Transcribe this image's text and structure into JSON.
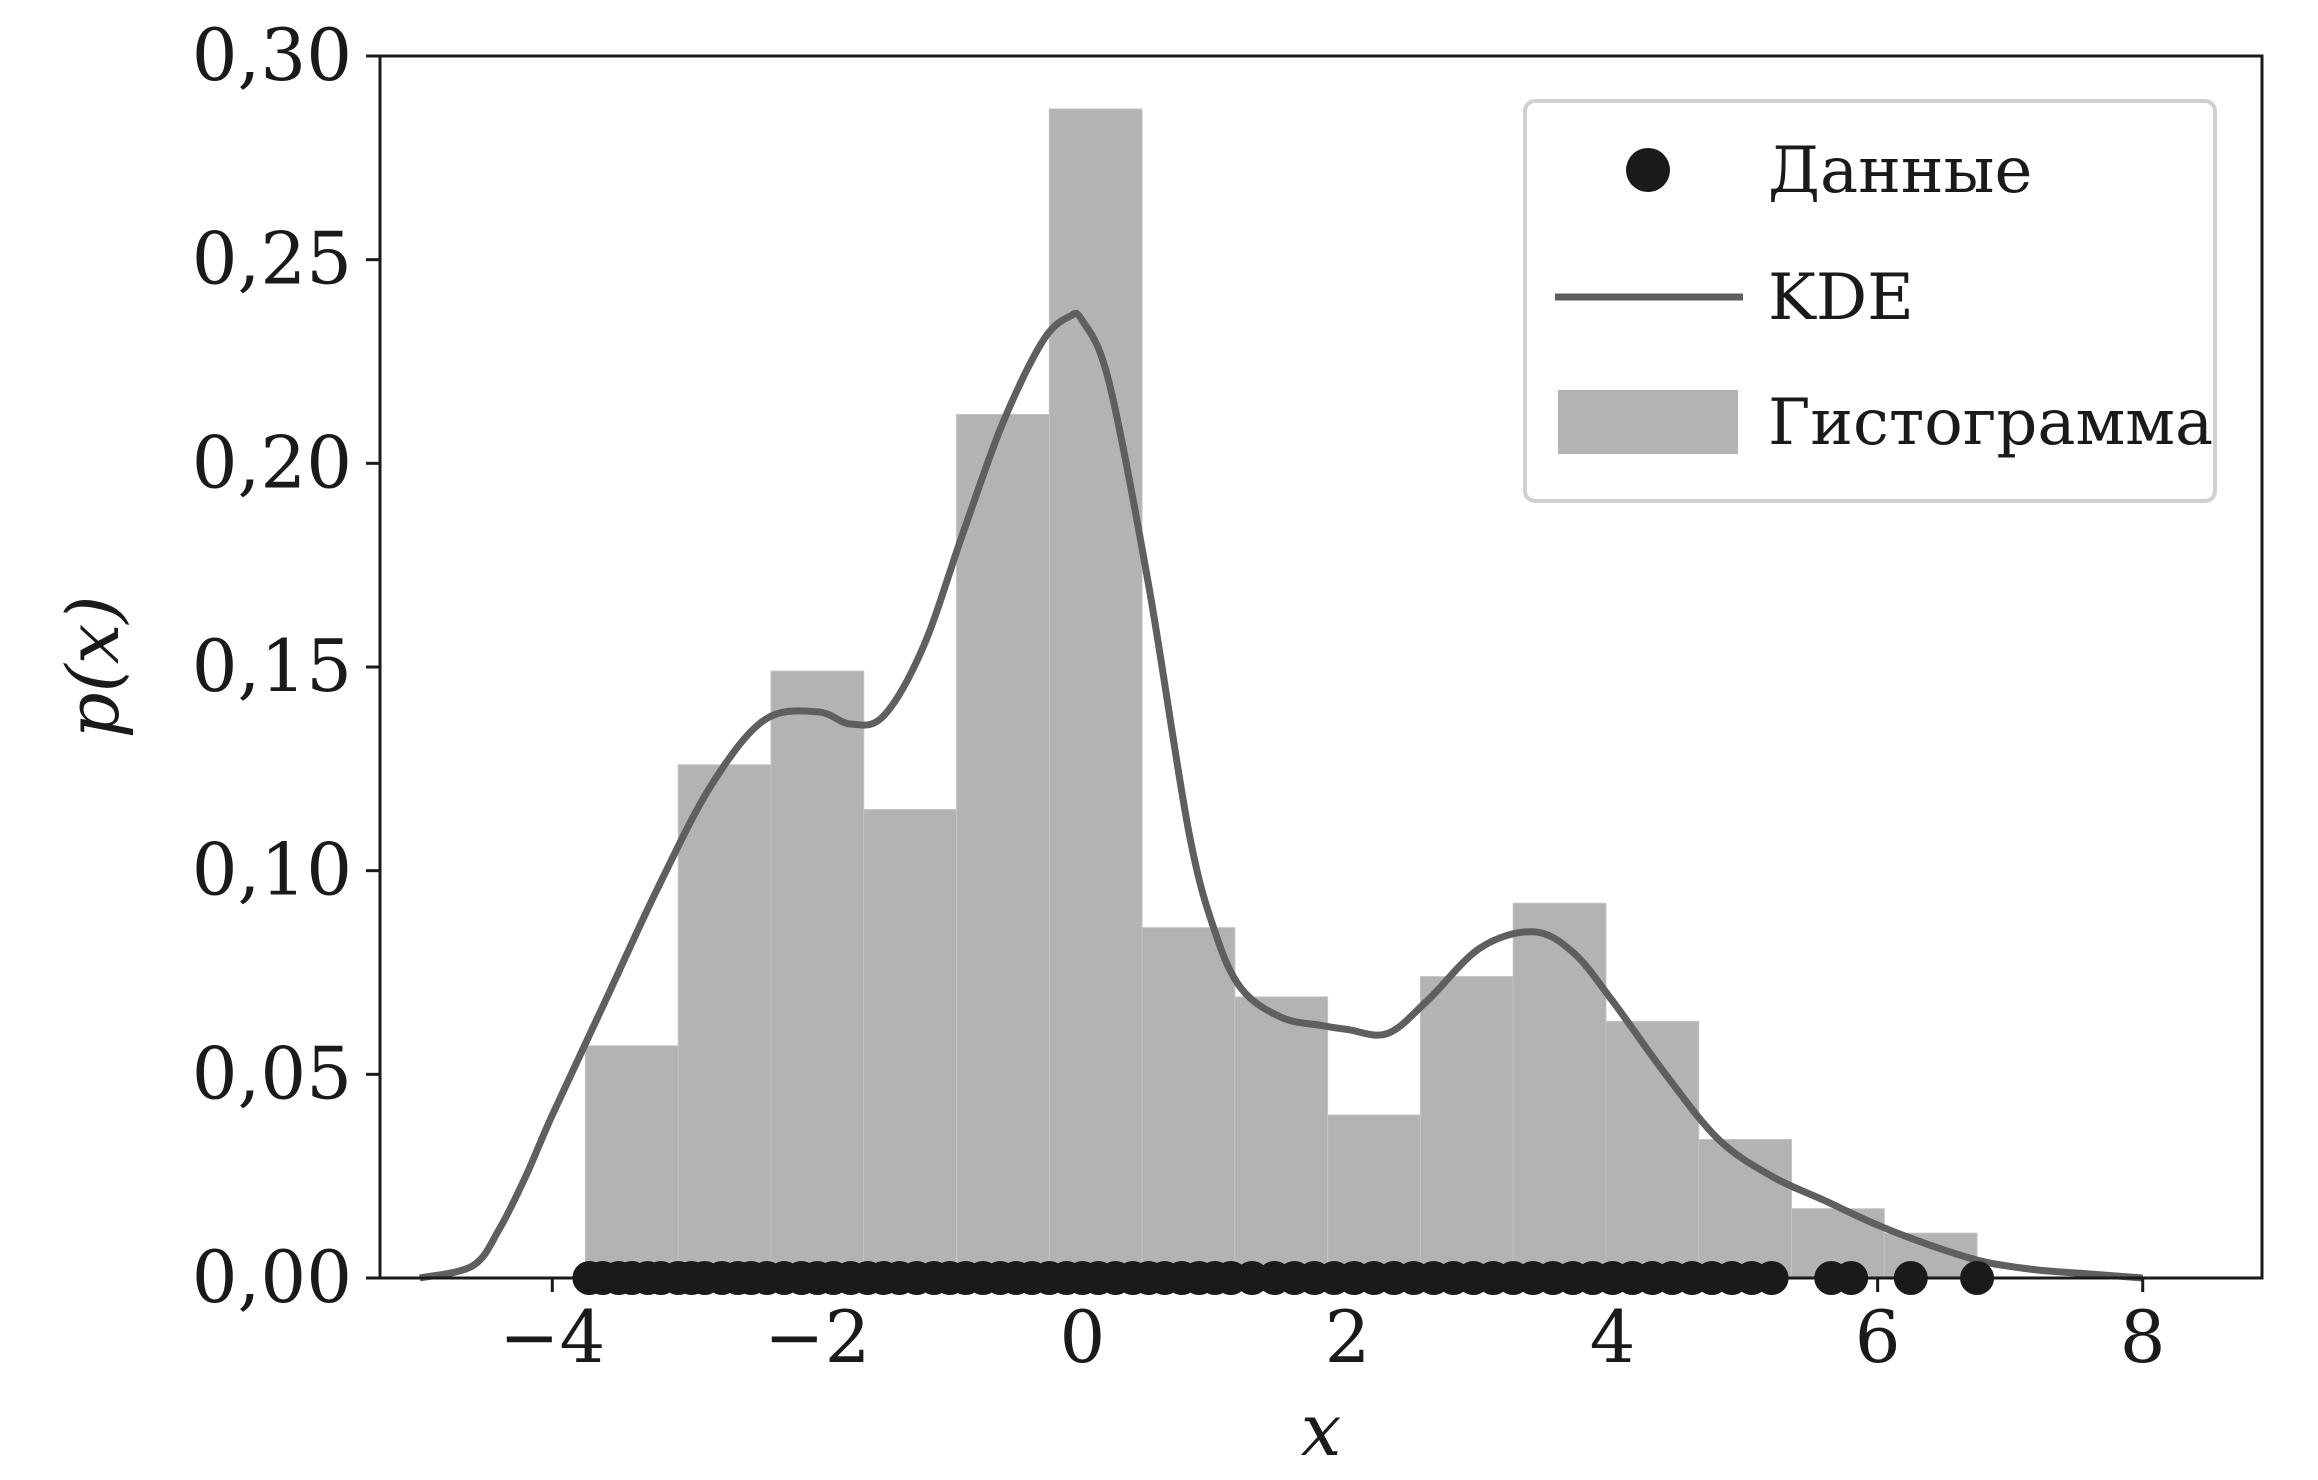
{
  "chart_data": {
    "type": "bar",
    "title": "",
    "xlabel": "x",
    "ylabel": "p(x)",
    "xlim": [
      -5.3,
      8.9
    ],
    "ylim": [
      0,
      0.3
    ],
    "x_ticks": [
      {
        "value": -4,
        "label": "−4"
      },
      {
        "value": -2,
        "label": "−2"
      },
      {
        "value": 0,
        "label": "0"
      },
      {
        "value": 2,
        "label": "2"
      },
      {
        "value": 4,
        "label": "4"
      },
      {
        "value": 6,
        "label": "6"
      },
      {
        "value": 8,
        "label": "8"
      }
    ],
    "y_ticks": [
      {
        "value": 0.0,
        "label": "0,00"
      },
      {
        "value": 0.05,
        "label": "0,05"
      },
      {
        "value": 0.1,
        "label": "0,10"
      },
      {
        "value": 0.15,
        "label": "0,15"
      },
      {
        "value": 0.2,
        "label": "0,20"
      },
      {
        "value": 0.25,
        "label": "0,25"
      },
      {
        "value": 0.3,
        "label": "0,30"
      }
    ],
    "grid": false,
    "legend_position": "top-right",
    "colors": {
      "histogram": "#b3b3b3",
      "kde": "#5f5f5f",
      "data_points": "#1a1a1a",
      "axes": "#1a1a1a",
      "legend_border": "#d0d0d0"
    },
    "series": [
      {
        "name": "Гистограмма",
        "type": "histogram",
        "bins": [
          {
            "x0": -3.75,
            "x1": -3.05,
            "value": 0.057
          },
          {
            "x0": -3.05,
            "x1": -2.35,
            "value": 0.126
          },
          {
            "x0": -2.35,
            "x1": -1.65,
            "value": 0.149
          },
          {
            "x0": -1.65,
            "x1": -0.95,
            "value": 0.115
          },
          {
            "x0": -0.95,
            "x1": -0.25,
            "value": 0.212
          },
          {
            "x0": -0.25,
            "x1": 0.45,
            "value": 0.287
          },
          {
            "x0": 0.45,
            "x1": 1.15,
            "value": 0.086
          },
          {
            "x0": 1.15,
            "x1": 1.85,
            "value": 0.069
          },
          {
            "x0": 1.85,
            "x1": 2.55,
            "value": 0.04
          },
          {
            "x0": 2.55,
            "x1": 3.25,
            "value": 0.074
          },
          {
            "x0": 3.25,
            "x1": 3.95,
            "value": 0.092
          },
          {
            "x0": 3.95,
            "x1": 4.65,
            "value": 0.063
          },
          {
            "x0": 4.65,
            "x1": 5.35,
            "value": 0.034
          },
          {
            "x0": 5.35,
            "x1": 6.05,
            "value": 0.017
          },
          {
            "x0": 6.05,
            "x1": 6.75,
            "value": 0.011
          }
        ]
      },
      {
        "name": "KDE",
        "type": "line",
        "x": [
          -5.0,
          -4.6,
          -4.4,
          -4.2,
          -4.0,
          -3.6,
          -3.2,
          -2.8,
          -2.4,
          -2.0,
          -1.75,
          -1.5,
          -1.2,
          -0.9,
          -0.6,
          -0.3,
          -0.1,
          0.0,
          0.2,
          0.5,
          0.8,
          1.0,
          1.2,
          1.5,
          1.8,
          2.0,
          2.3,
          2.6,
          3.0,
          3.4,
          3.7,
          4.0,
          4.4,
          4.8,
          5.2,
          5.6,
          6.0,
          6.4,
          6.8,
          7.2,
          7.6,
          8.0
        ],
        "y": [
          0.0,
          0.003,
          0.012,
          0.025,
          0.04,
          0.068,
          0.096,
          0.121,
          0.137,
          0.139,
          0.136,
          0.138,
          0.155,
          0.183,
          0.21,
          0.23,
          0.236,
          0.235,
          0.22,
          0.17,
          0.11,
          0.085,
          0.071,
          0.064,
          0.062,
          0.061,
          0.06,
          0.068,
          0.081,
          0.085,
          0.08,
          0.068,
          0.05,
          0.034,
          0.025,
          0.019,
          0.013,
          0.008,
          0.004,
          0.002,
          0.001,
          0.0
        ]
      },
      {
        "name": "Данные",
        "type": "scatter",
        "x": [
          -3.72,
          -3.62,
          -3.5,
          -3.4,
          -3.28,
          -3.18,
          -3.05,
          -2.95,
          -2.85,
          -2.72,
          -2.6,
          -2.5,
          -2.38,
          -2.25,
          -2.12,
          -2.0,
          -1.88,
          -1.75,
          -1.62,
          -1.5,
          -1.38,
          -1.25,
          -1.12,
          -1.0,
          -0.88,
          -0.75,
          -0.62,
          -0.5,
          -0.38,
          -0.25,
          -0.12,
          0.0,
          0.12,
          0.25,
          0.38,
          0.5,
          0.62,
          0.75,
          0.88,
          1.0,
          1.12,
          1.28,
          1.45,
          1.6,
          1.75,
          1.9,
          2.05,
          2.2,
          2.35,
          2.5,
          2.65,
          2.8,
          2.95,
          3.1,
          3.25,
          3.4,
          3.55,
          3.7,
          3.85,
          4.0,
          4.15,
          4.3,
          4.45,
          4.6,
          4.75,
          4.9,
          5.05,
          5.2,
          5.65,
          5.8,
          6.25,
          6.75
        ],
        "y": 0
      }
    ],
    "legend": [
      {
        "label": "Данные",
        "marker": "dot"
      },
      {
        "label": "KDE",
        "marker": "line"
      },
      {
        "label": "Гистограмма",
        "marker": "patch"
      }
    ]
  }
}
